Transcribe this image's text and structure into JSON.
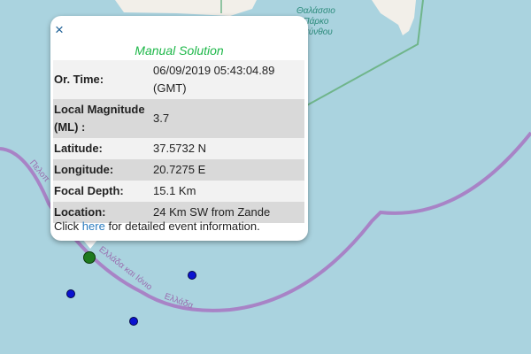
{
  "map": {
    "sea_label": [
      "Θαλάσσιο",
      "Πάρκο",
      "ακύνθου"
    ],
    "boundary_labels": [
      "Πελοπ",
      "Ελλάδα και Ιόνιο",
      "Ελλάδα"
    ],
    "colors": {
      "sea": "#aad3df",
      "land": "#f2efe9",
      "boundary": "#a883c6",
      "park": "#6fb58a",
      "selected_event": "#1e7a1e",
      "event": "#0a12d0"
    }
  },
  "popup": {
    "close_label": "×",
    "title": "Manual Solution",
    "rows": [
      {
        "label": "Or. Time:",
        "value": "06/09/2019 05:43:04.89 (GMT)"
      },
      {
        "label": "Local Magnitude (ML) :",
        "value": "3.7"
      },
      {
        "label": "Latitude:",
        "value": "37.5732 N"
      },
      {
        "label": "Longitude:",
        "value": "20.7275 E"
      },
      {
        "label": "Focal Depth:",
        "value": "15.1 Km"
      },
      {
        "label": "Location:",
        "value": "24 Km SW from Zande"
      }
    ],
    "footer_prefix": "Click",
    "footer_link": "here",
    "footer_suffix": "for detailed event information."
  }
}
